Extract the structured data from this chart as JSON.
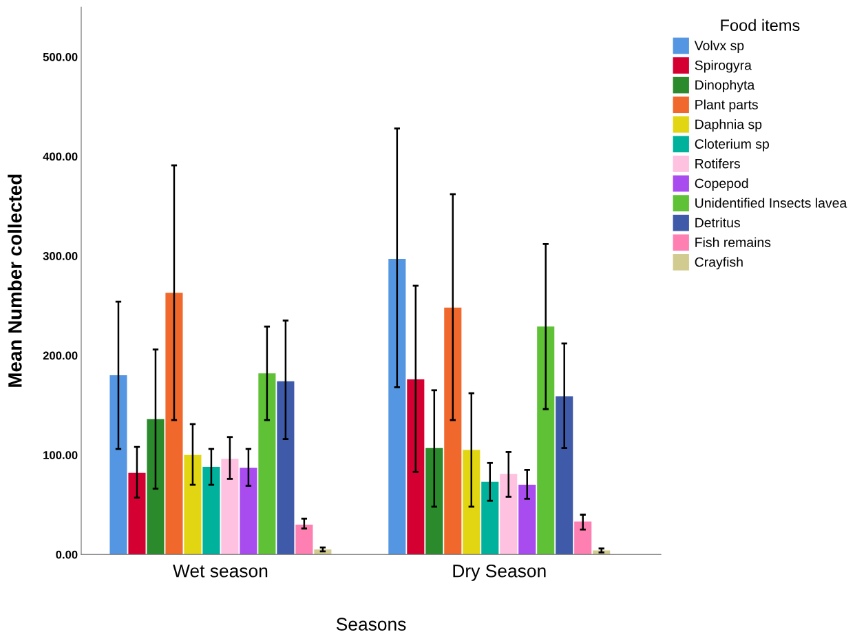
{
  "chart_data": {
    "type": "bar",
    "xlabel": "Seasons",
    "ylabel": "Mean Number collected",
    "legend_title": "Food items",
    "legend": "top right",
    "grid": false,
    "categories": [
      "Wet season",
      "Dry Season"
    ],
    "ylim": [
      0,
      550
    ],
    "yticks": [
      {
        "value": 0,
        "label": "0.00"
      },
      {
        "value": 100,
        "label": "100.00"
      },
      {
        "value": 200,
        "label": "200.00"
      },
      {
        "value": 300,
        "label": "300.00"
      },
      {
        "value": 400,
        "label": "400.00"
      },
      {
        "value": 500,
        "label": "500.00"
      }
    ],
    "series": [
      {
        "name": "Volvx sp",
        "color": "#5596e2",
        "values": [
          180,
          297
        ],
        "errors": [
          [
            106,
            254
          ],
          [
            168,
            428
          ]
        ]
      },
      {
        "name": "Spirogyra",
        "color": "#d50032",
        "values": [
          82,
          176
        ],
        "errors": [
          [
            57,
            108
          ],
          [
            83,
            270
          ]
        ]
      },
      {
        "name": "Dinophyta",
        "color": "#2b8a2b",
        "values": [
          136,
          107
        ],
        "errors": [
          [
            66,
            206
          ],
          [
            48,
            165
          ]
        ]
      },
      {
        "name": "Plant parts",
        "color": "#f1682c",
        "values": [
          263,
          248
        ],
        "errors": [
          [
            135,
            391
          ],
          [
            135,
            362
          ]
        ]
      },
      {
        "name": "Daphnia sp",
        "color": "#e2d612",
        "values": [
          100,
          105
        ],
        "errors": [
          [
            70,
            131
          ],
          [
            48,
            162
          ]
        ]
      },
      {
        "name": "Cloterium sp",
        "color": "#00b19c",
        "values": [
          88,
          73
        ],
        "errors": [
          [
            70,
            106
          ],
          [
            54,
            92
          ]
        ]
      },
      {
        "name": "Rotifers",
        "color": "#fec1e0",
        "values": [
          96,
          81
        ],
        "errors": [
          [
            76,
            118
          ],
          [
            58,
            103
          ]
        ]
      },
      {
        "name": "Copepod",
        "color": "#a84bef",
        "values": [
          87,
          70
        ],
        "errors": [
          [
            69,
            106
          ],
          [
            56,
            85
          ]
        ]
      },
      {
        "name": "Unidentified Insects lavea",
        "color": "#5fc236",
        "values": [
          182,
          229
        ],
        "errors": [
          [
            135,
            229
          ],
          [
            146,
            312
          ]
        ]
      },
      {
        "name": "Detritus",
        "color": "#3f5aa9",
        "values": [
          174,
          159
        ],
        "errors": [
          [
            116,
            235
          ],
          [
            107,
            212
          ]
        ]
      },
      {
        "name": "Fish remains",
        "color": "#fe80b2",
        "values": [
          30,
          33
        ],
        "errors": [
          [
            26,
            36
          ],
          [
            25,
            40
          ]
        ]
      },
      {
        "name": "Crayfish",
        "color": "#d1cb8f",
        "values": [
          5,
          4
        ],
        "errors": [
          [
            3,
            7
          ],
          [
            2,
            6
          ]
        ]
      }
    ]
  }
}
